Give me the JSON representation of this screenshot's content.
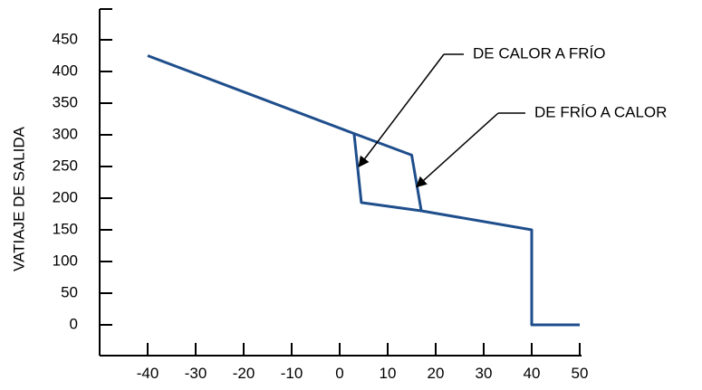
{
  "chart_data": {
    "type": "line",
    "title": "",
    "xlabel": "",
    "ylabel": "VATIAJE DE SALIDA",
    "xlim": [
      -50,
      50
    ],
    "ylim": [
      -50,
      500
    ],
    "x_ticks": [
      -40,
      -30,
      -20,
      -10,
      0,
      10,
      20,
      30,
      40,
      50
    ],
    "y_ticks": [
      0,
      50,
      100,
      150,
      200,
      250,
      300,
      350,
      400,
      450
    ],
    "grid": false,
    "series": [
      {
        "color": "#1f4e8c",
        "points": [
          [
            -40,
            425
          ],
          [
            3,
            302
          ],
          [
            15,
            268
          ],
          [
            17,
            180
          ],
          [
            40,
            150
          ],
          [
            40,
            0
          ],
          [
            50,
            0
          ]
        ]
      },
      {
        "color": "#1f4e8c",
        "points": [
          [
            3,
            302
          ],
          [
            4.5,
            193
          ],
          [
            17,
            180
          ]
        ]
      }
    ],
    "annotations": [
      {
        "text": "DE CALOR A FRÍO",
        "target": [
          4,
          250
        ]
      },
      {
        "text": "DE FRÍO A CALOR",
        "target": [
          16,
          218
        ]
      }
    ]
  }
}
